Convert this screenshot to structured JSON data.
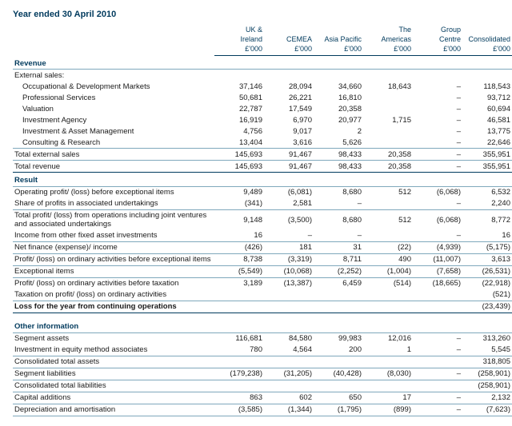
{
  "title": "Year ended 30 April 2010",
  "columns": [
    {
      "l1": "UK &",
      "l2": "Ireland",
      "l3": "£'000"
    },
    {
      "l1": "",
      "l2": "CEMEA",
      "l3": "£'000"
    },
    {
      "l1": "",
      "l2": "Asia Pacific",
      "l3": "£'000"
    },
    {
      "l1": "The",
      "l2": "Americas",
      "l3": "£'000"
    },
    {
      "l1": "Group",
      "l2": "Centre",
      "l3": "£'000"
    },
    {
      "l1": "",
      "l2": "Consolidated",
      "l3": "£'000"
    }
  ],
  "sections": {
    "revenue": "Revenue",
    "result": "Result",
    "other": "Other information"
  },
  "ext_sales_label": "External sales:",
  "ext": [
    {
      "label": "Occupational & Development Markets",
      "v": [
        "37,146",
        "28,094",
        "34,660",
        "18,643",
        "–",
        "118,543"
      ]
    },
    {
      "label": "Professional Services",
      "v": [
        "50,681",
        "26,221",
        "16,810",
        "",
        "–",
        "93,712"
      ]
    },
    {
      "label": "Valuation",
      "v": [
        "22,787",
        "17,549",
        "20,358",
        "",
        "–",
        "60,694"
      ]
    },
    {
      "label": "Investment Agency",
      "v": [
        "16,919",
        "6,970",
        "20,977",
        "1,715",
        "–",
        "46,581"
      ]
    },
    {
      "label": "Investment & Asset Management",
      "v": [
        "4,756",
        "9,017",
        "2",
        "",
        "–",
        "13,775"
      ]
    },
    {
      "label": "Consulting & Research",
      "v": [
        "13,404",
        "3,616",
        "5,626",
        "",
        "–",
        "22,646"
      ]
    }
  ],
  "total_ext": {
    "label": "Total external sales",
    "v": [
      "145,693",
      "91,467",
      "98,433",
      "20,358",
      "–",
      "355,951"
    ]
  },
  "total_rev": {
    "label": "Total revenue",
    "v": [
      "145,693",
      "91,467",
      "98,433",
      "20,358",
      "–",
      "355,951"
    ]
  },
  "result_rows": [
    {
      "label": "Operating profit/ (loss) before exceptional items",
      "v": [
        "9,489",
        "(6,081)",
        "8,680",
        "512",
        "(6,068)",
        "6,532"
      ],
      "cls": ""
    },
    {
      "label": "Share of profits in associated undertakings",
      "v": [
        "(341)",
        "2,581",
        "–",
        "",
        "–",
        "2,240"
      ],
      "cls": "underline"
    },
    {
      "label": "Total profit/ (loss) from operations including joint ventures and associated undertakings",
      "v": [
        "9,148",
        "(3,500)",
        "8,680",
        "512",
        "(6,068)",
        "8,772"
      ],
      "cls": ""
    },
    {
      "label": "Income from other fixed asset investments",
      "v": [
        "16",
        "–",
        "–",
        "",
        "–",
        "16"
      ],
      "cls": ""
    },
    {
      "label": "Net finance (expense)/ income",
      "v": [
        "(426)",
        "181",
        "31",
        "(22)",
        "(4,939)",
        "(5,175)"
      ],
      "cls": "underline topline"
    },
    {
      "label": "Profit/ (loss) on ordinary activities before exceptional items",
      "v": [
        "8,738",
        "(3,319)",
        "8,711",
        "490",
        "(11,007)",
        "3,613"
      ],
      "cls": ""
    },
    {
      "label": "Exceptional items",
      "v": [
        "(5,549)",
        "(10,068)",
        "(2,252)",
        "(1,004)",
        "(7,658)",
        "(26,531)"
      ],
      "cls": "underline topline"
    },
    {
      "label": "Profit/ (loss) on ordinary activities before taxation",
      "v": [
        "3,189",
        "(13,387)",
        "6,459",
        "(514)",
        "(18,665)",
        "(22,918)"
      ],
      "cls": ""
    },
    {
      "label": "Taxation on profit/ (loss) on ordinary activities",
      "v": [
        "",
        "",
        "",
        "",
        "",
        "(521)"
      ],
      "cls": "underline"
    }
  ],
  "loss_row": {
    "label": "Loss for the year from continuing operations",
    "v": [
      "",
      "",
      "",
      "",
      "",
      "(23,439)"
    ]
  },
  "other_rows": [
    {
      "label": "Segment assets",
      "v": [
        "116,681",
        "84,580",
        "99,983",
        "12,016",
        "–",
        "313,260"
      ],
      "cls": ""
    },
    {
      "label": "Investment in equity method associates",
      "v": [
        "780",
        "4,564",
        "200",
        "1",
        "–",
        "5,545"
      ],
      "cls": "underline"
    },
    {
      "label": "Consolidated total assets",
      "v": [
        "",
        "",
        "",
        "",
        "",
        "318,805"
      ],
      "cls": "underline"
    },
    {
      "label": "Segment liabilities",
      "v": [
        "(179,238)",
        "(31,205)",
        "(40,428)",
        "(8,030)",
        "–",
        "(258,901)"
      ],
      "cls": "underline"
    },
    {
      "label": "Consolidated total liabilities",
      "v": [
        "",
        "",
        "",
        "",
        "",
        "(258,901)"
      ],
      "cls": "underline"
    },
    {
      "label": "Capital additions",
      "v": [
        "863",
        "602",
        "650",
        "17",
        "–",
        "2,132"
      ],
      "cls": "underline"
    },
    {
      "label": "Depreciation and amortisation",
      "v": [
        "(3,585)",
        "(1,344)",
        "(1,795)",
        "(899)",
        "–",
        "(7,623)"
      ],
      "cls": "underline"
    }
  ]
}
